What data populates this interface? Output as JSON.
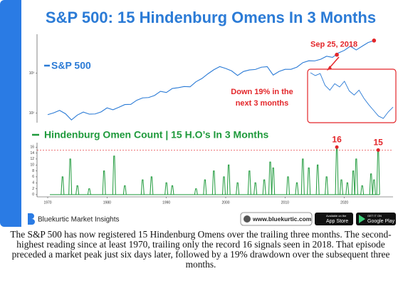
{
  "header": {
    "title": "S&P 500: 15 Hindenburg Omens In 3 Months"
  },
  "chart_data": [
    {
      "type": "line",
      "log_scale": true,
      "series": [
        {
          "name": "S&P 500",
          "color": "#2b7bd6",
          "x": [
            1970,
            1971,
            1972,
            1973,
            1974,
            1975,
            1976,
            1977,
            1978,
            1979,
            1980,
            1981,
            1982,
            1983,
            1984,
            1985,
            1986,
            1987,
            1988,
            1989,
            1990,
            1991,
            1992,
            1993,
            1994,
            1995,
            1996,
            1997,
            1998,
            1999,
            2000,
            2001,
            2002,
            2003,
            2004,
            2005,
            2006,
            2007,
            2008,
            2009,
            2010,
            2011,
            2012,
            2013,
            2014,
            2015,
            2016,
            2017,
            2018,
            2019,
            2020,
            2021,
            2022,
            2023,
            2024,
            2025
          ],
          "values": [
            92,
            102,
            118,
            97,
            68,
            90,
            107,
            95,
            96,
            108,
            136,
            122,
            141,
            165,
            167,
            211,
            242,
            247,
            278,
            353,
            330,
            417,
            436,
            466,
            459,
            616,
            741,
            970,
            1229,
            1469,
            1320,
            1148,
            880,
            1112,
            1212,
            1248,
            1418,
            1468,
            903,
            1115,
            1258,
            1258,
            1426,
            1848,
            2059,
            2044,
            2239,
            2674,
            2507,
            3231,
            3756,
            4766,
            3840,
            4770,
            5882,
            6600
          ]
        }
      ],
      "xlim": [
        1968.2,
        2028.2
      ],
      "ylim": [
        58,
        9500
      ],
      "yticks": [
        {
          "value": 100,
          "label": "10²"
        },
        {
          "value": 1000,
          "label": "10³"
        }
      ],
      "annotations": [
        {
          "text": "Sep 25, 2018",
          "x": 2018.73,
          "y": 2915
        }
      ],
      "inset_note": [
        "Down 19% in the",
        "next 3 months"
      ],
      "inset": {
        "color": "#2b7bd6",
        "values": [
          2915,
          2880,
          2905,
          2760,
          2700,
          2780,
          2740,
          2810,
          2690,
          2640,
          2700,
          2600,
          2520,
          2450,
          2380,
          2351,
          2430,
          2490
        ]
      }
    },
    {
      "type": "spike",
      "series": [
        {
          "name": "Hindenburg Omen Count | 15 H.O’s In 3 Months",
          "color": "#1f9a3c",
          "x": [
            1972.5,
            1973.8,
            1975,
            1977,
            1979.5,
            1981.2,
            1983,
            1986,
            1987.5,
            1990,
            1991,
            1995,
            1996.5,
            1998,
            1999.7,
            2000.5,
            2002,
            2004,
            2005,
            2006.5,
            2007.5,
            2008,
            2010.5,
            2012,
            2013,
            2014,
            2015.5,
            2017,
            2018.73,
            2019.5,
            2020.5,
            2021.5,
            2022,
            2023,
            2024.5,
            2025,
            2025.7
          ],
          "values": [
            6,
            12,
            3,
            2,
            8,
            13,
            3,
            5,
            6,
            4,
            3,
            2,
            5,
            8,
            6,
            10,
            4,
            8,
            4,
            5,
            11,
            9,
            6,
            4,
            12,
            9,
            10,
            6,
            16,
            5,
            4,
            8,
            12,
            3,
            7,
            5,
            15
          ]
        }
      ],
      "xlim": [
        1968.2,
        2028.2
      ],
      "ylim": [
        -0.5,
        17.5
      ],
      "xticks": [
        1970,
        1980,
        1990,
        2000,
        2010,
        2020
      ],
      "yticks": [
        0,
        2,
        4,
        6,
        8,
        10,
        12,
        14,
        16
      ],
      "reference_line": 15,
      "peak_labels": [
        {
          "x": 2018.73,
          "value": 16
        },
        {
          "x": 2025.7,
          "value": 15
        }
      ]
    }
  ],
  "footer": {
    "brand": "Bluekurtic Market Insights",
    "website": "www.bluekurtic.com",
    "app_store": [
      "Available on the",
      "App Store"
    ],
    "google_play": [
      "GET IT ON",
      "Google Play"
    ]
  },
  "caption": "The S&P 500 has now registered 15 Hindenburg Omens over the trailing three months. The second-highest reading since at least 1970, trailing only the record 16 signals seen in 2018. That episode preceded a market peak just six days later, followed by a 19% drawdown over the subsequent three months."
}
